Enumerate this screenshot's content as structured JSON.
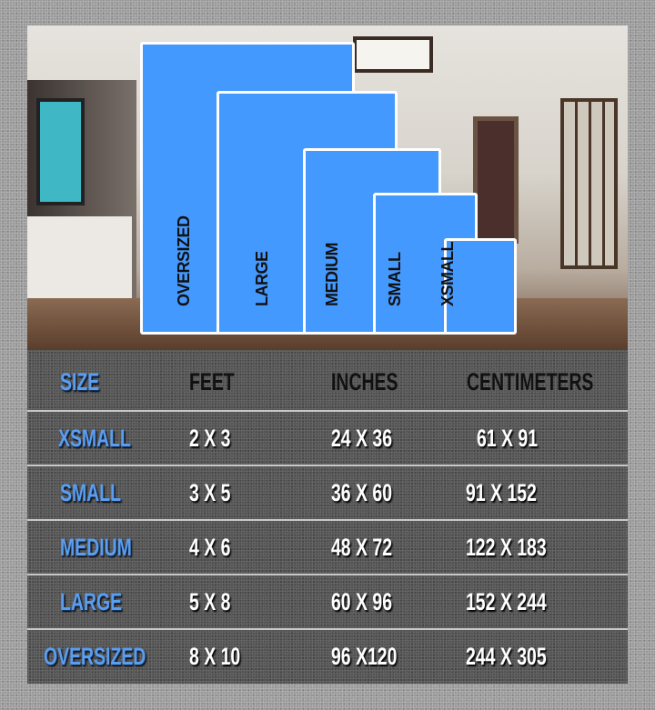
{
  "colors": {
    "rug_fill": "#4499ff",
    "size_label": "#5b9dee",
    "value_text": "#ffffff",
    "header_text": "#111111"
  },
  "rug_labels": [
    "OVERSIZED",
    "LARGE",
    "MEDIUM",
    "SMALL",
    "XSMALL"
  ],
  "table": {
    "headers": {
      "size": "SIZE",
      "feet": "FEET",
      "inches": "INCHES",
      "centimeters": "CENTIMETERS"
    },
    "rows": [
      {
        "size": "XSMALL",
        "feet": "2 X 3",
        "inches": "24 X 36",
        "centimeters": "61 X 91"
      },
      {
        "size": "SMALL",
        "feet": "3 X 5",
        "inches": "36 X 60",
        "centimeters": "91 X 152"
      },
      {
        "size": "MEDIUM",
        "feet": "4 X 6",
        "inches": "48 X 72",
        "centimeters": "122 X 183"
      },
      {
        "size": "LARGE",
        "feet": "5 X 8",
        "inches": "60 X 96",
        "centimeters": "152 X 244"
      },
      {
        "size": "OVERSIZED",
        "feet": "8 X 10",
        "inches": "96 X120",
        "centimeters": "244 X 305"
      }
    ]
  }
}
